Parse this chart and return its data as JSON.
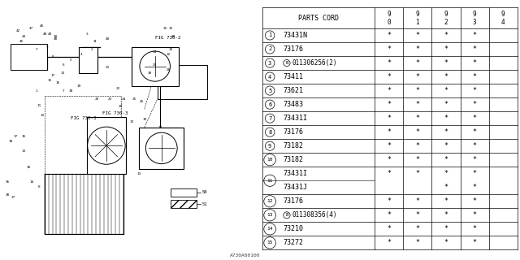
{
  "diagram_ref": "A730A00100",
  "bg_color": "#ffffff",
  "line_color": "#000000",
  "text_color": "#000000",
  "years": [
    "9\n0",
    "9\n1",
    "9\n2",
    "9\n3",
    "9\n4"
  ],
  "row_data": [
    {
      "num": "1",
      "part": "73431N",
      "B": false,
      "cols": [
        "*",
        "*",
        "*",
        "*",
        ""
      ],
      "double": false
    },
    {
      "num": "2",
      "part": "73176",
      "B": false,
      "cols": [
        "*",
        "*",
        "*",
        "*",
        ""
      ],
      "double": false
    },
    {
      "num": "3",
      "part": "011306256(2)",
      "B": true,
      "cols": [
        "*",
        "*",
        "*",
        "*",
        ""
      ],
      "double": false
    },
    {
      "num": "4",
      "part": "73411",
      "B": false,
      "cols": [
        "*",
        "*",
        "*",
        "*",
        ""
      ],
      "double": false
    },
    {
      "num": "5",
      "part": "73621",
      "B": false,
      "cols": [
        "*",
        "*",
        "*",
        "*",
        ""
      ],
      "double": false
    },
    {
      "num": "6",
      "part": "73483",
      "B": false,
      "cols": [
        "*",
        "*",
        "*",
        "*",
        ""
      ],
      "double": false
    },
    {
      "num": "7",
      "part": "73431I",
      "B": false,
      "cols": [
        "*",
        "*",
        "*",
        "*",
        ""
      ],
      "double": false
    },
    {
      "num": "8",
      "part": "73176",
      "B": false,
      "cols": [
        "*",
        "*",
        "*",
        "*",
        ""
      ],
      "double": false
    },
    {
      "num": "9",
      "part": "73182",
      "B": false,
      "cols": [
        "*",
        "*",
        "*",
        "*",
        ""
      ],
      "double": false
    },
    {
      "num": "10",
      "part": "73182",
      "B": false,
      "cols": [
        "*",
        "*",
        "*",
        "*",
        ""
      ],
      "double": false
    },
    {
      "num": "11",
      "part": "73431I",
      "B": false,
      "cols": [
        "*",
        "*",
        "*",
        "*",
        ""
      ],
      "double": true,
      "part2": "73431J",
      "cols2": [
        "",
        "",
        "*",
        "*",
        ""
      ]
    },
    {
      "num": "12",
      "part": "73176",
      "B": false,
      "cols": [
        "*",
        "*",
        "*",
        "*",
        ""
      ],
      "double": false
    },
    {
      "num": "13",
      "part": "011308356(4)",
      "B": true,
      "cols": [
        "*",
        "*",
        "*",
        "*",
        ""
      ],
      "double": false
    },
    {
      "num": "14",
      "part": "73210",
      "B": false,
      "cols": [
        "*",
        "*",
        "*",
        "*",
        ""
      ],
      "double": false
    },
    {
      "num": "15",
      "part": "73272",
      "B": false,
      "cols": [
        "*",
        "*",
        "*",
        "*",
        ""
      ],
      "double": false
    }
  ]
}
